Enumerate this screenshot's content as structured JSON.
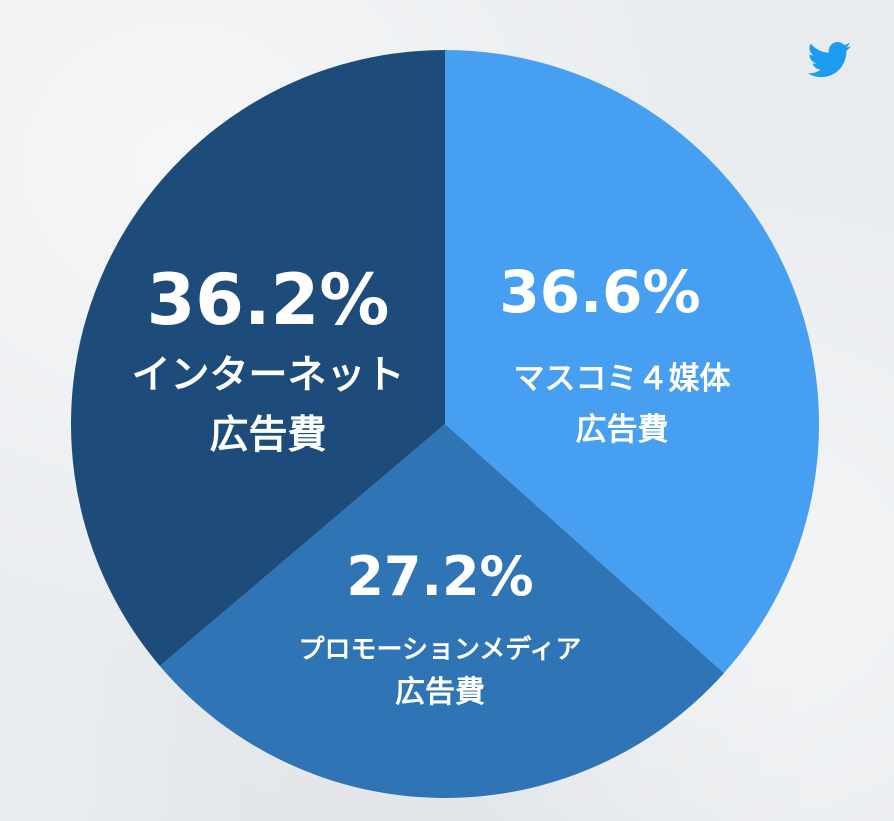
{
  "chart_data": {
    "type": "pie",
    "start_angle_deg": 0,
    "direction": "clockwise",
    "slices": [
      {
        "value": 36.6,
        "value_label": "36.6%",
        "label_lines": [
          "マスコミ４媒体",
          "広告費"
        ],
        "color": "#479ff1"
      },
      {
        "value": 27.2,
        "value_label": "27.2%",
        "label_lines": [
          "プロモーションメディア",
          "広告費"
        ],
        "color": "#2f74b5"
      },
      {
        "value": 36.2,
        "value_label": "36.2%",
        "label_lines": [
          "インターネット",
          "広告費"
        ],
        "color": "#1d4b7a"
      }
    ]
  },
  "icons": {
    "corner": "twitter-icon",
    "corner_color": "#1d9bf0"
  }
}
